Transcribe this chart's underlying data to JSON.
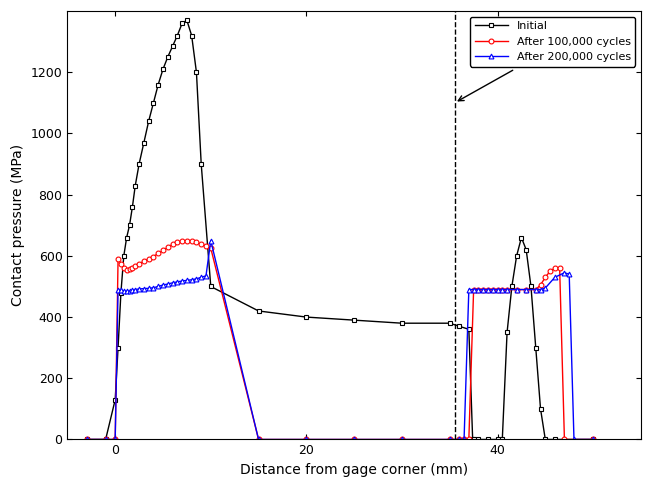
{
  "xlabel": "Distance from gage corner (mm)",
  "ylabel": "Contact pressure (MPa)",
  "xlim": [
    -5,
    55
  ],
  "ylim": [
    0,
    1400
  ],
  "yticks": [
    0,
    200,
    400,
    600,
    800,
    1000,
    1200
  ],
  "xticks": [
    0,
    20,
    40
  ],
  "center_of_rail_x": 35.5,
  "initial_x": [
    -3,
    -1,
    0,
    0.3,
    0.6,
    0.9,
    1.2,
    1.5,
    1.8,
    2.1,
    2.5,
    3.0,
    3.5,
    4.0,
    4.5,
    5.0,
    5.5,
    6.0,
    6.5,
    7.0,
    7.5,
    8.0,
    8.5,
    9.0,
    10,
    15,
    20,
    25,
    30,
    35,
    36,
    37,
    37.4,
    37.5,
    38,
    39,
    40,
    40.5,
    41,
    41.5,
    42,
    42.5,
    43,
    43.5,
    44,
    44.5,
    45,
    46,
    50
  ],
  "initial_y": [
    0,
    0,
    130,
    300,
    480,
    600,
    660,
    700,
    760,
    830,
    900,
    970,
    1040,
    1100,
    1160,
    1210,
    1250,
    1285,
    1320,
    1360,
    1370,
    1320,
    1200,
    900,
    500,
    420,
    400,
    390,
    380,
    380,
    370,
    360,
    0,
    0,
    0,
    0,
    0,
    0,
    350,
    500,
    600,
    660,
    620,
    500,
    300,
    100,
    0,
    0,
    0
  ],
  "red_x": [
    -3,
    -1,
    0,
    0.3,
    0.6,
    0.9,
    1.2,
    1.5,
    1.8,
    2.1,
    2.5,
    3.0,
    3.5,
    4.0,
    4.5,
    5.0,
    5.5,
    6.0,
    6.5,
    7.0,
    7.5,
    8.0,
    8.5,
    9.0,
    9.5,
    10,
    15,
    20,
    25,
    30,
    35,
    36,
    36.5,
    37,
    37.5,
    38,
    38.5,
    39,
    39.5,
    40,
    40.5,
    41,
    42,
    43,
    44,
    44.5,
    45,
    45.5,
    46,
    46.5,
    47,
    50
  ],
  "red_y": [
    0,
    0,
    0,
    590,
    575,
    560,
    555,
    558,
    562,
    568,
    575,
    582,
    590,
    598,
    608,
    618,
    628,
    638,
    644,
    648,
    650,
    648,
    644,
    638,
    632,
    625,
    0,
    0,
    0,
    0,
    0,
    0,
    0,
    0,
    490,
    490,
    490,
    490,
    490,
    490,
    490,
    490,
    490,
    490,
    490,
    505,
    530,
    550,
    560,
    560,
    0,
    0
  ],
  "blue_x": [
    -3,
    -1,
    0,
    0.3,
    0.6,
    0.9,
    1.2,
    1.5,
    1.8,
    2.1,
    2.5,
    3.0,
    3.5,
    4.0,
    4.5,
    5.0,
    5.5,
    6.0,
    6.5,
    7.0,
    7.5,
    8.0,
    8.5,
    9.0,
    9.5,
    10,
    15,
    20,
    25,
    30,
    35,
    36,
    36.5,
    37,
    37.5,
    38,
    38.5,
    39,
    39.5,
    40,
    40.5,
    41,
    42,
    43,
    44,
    44.5,
    45,
    46,
    47,
    47.5,
    48,
    50
  ],
  "blue_y": [
    0,
    0,
    0,
    490,
    488,
    486,
    484,
    485,
    488,
    490,
    492,
    493,
    494,
    496,
    500,
    505,
    508,
    512,
    515,
    518,
    520,
    522,
    525,
    530,
    535,
    650,
    0,
    0,
    0,
    0,
    0,
    0,
    0,
    490,
    490,
    490,
    490,
    490,
    490,
    490,
    490,
    490,
    490,
    490,
    490,
    490,
    495,
    530,
    545,
    540,
    0,
    0
  ]
}
